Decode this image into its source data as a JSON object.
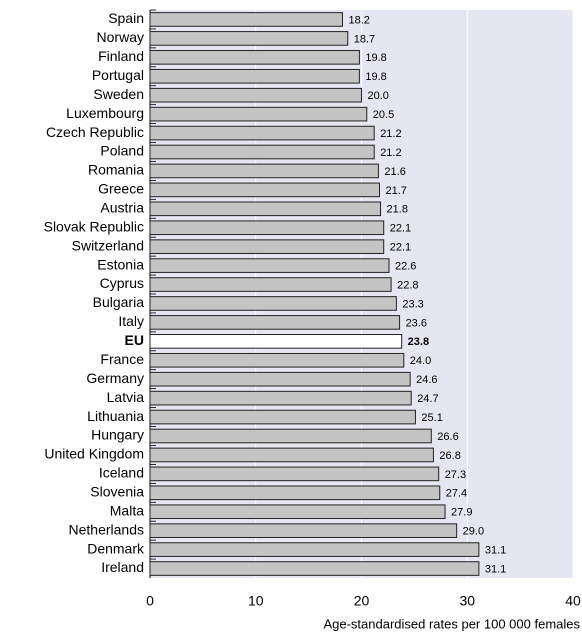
{
  "chart_data": {
    "type": "bar",
    "orientation": "horizontal",
    "x_label": "Age-standardised rates per 100 000 females",
    "categories": [
      "Spain",
      "Norway",
      "Finland",
      "Portugal",
      "Sweden",
      "Luxembourg",
      "Czech Republic",
      "Poland",
      "Romania",
      "Greece",
      "Austria",
      "Slovak Republic",
      "Switzerland",
      "Estonia",
      "Cyprus",
      "Bulgaria",
      "Italy",
      "EU",
      "France",
      "Germany",
      "Latvia",
      "Lithuania",
      "Hungary",
      "United Kingdom",
      "Iceland",
      "Slovenia",
      "Malta",
      "Netherlands",
      "Denmark",
      "Ireland"
    ],
    "values": [
      18.2,
      18.7,
      19.8,
      19.8,
      20.0,
      20.5,
      21.2,
      21.2,
      21.6,
      21.7,
      21.8,
      22.1,
      22.1,
      22.6,
      22.8,
      23.3,
      23.6,
      23.8,
      24.0,
      24.6,
      24.7,
      25.1,
      26.6,
      26.8,
      27.3,
      27.4,
      27.9,
      29.0,
      31.1,
      31.1
    ],
    "value_labels": [
      "18.2",
      "18.7",
      "19.8",
      "19.8",
      "20.0",
      "20.5",
      "21.2",
      "21.2",
      "21.6",
      "21.7",
      "21.8",
      "22.1",
      "22.1",
      "22.6",
      "22.8",
      "23.3",
      "23.6",
      "23.8",
      "24.0",
      "24.6",
      "24.7",
      "25.1",
      "26.6",
      "26.8",
      "27.3",
      "27.4",
      "27.9",
      "29.0",
      "31.1",
      "31.1"
    ],
    "color": "#c4c4c4",
    "highlight": "EU",
    "highlight_color": "#ffffff",
    "plot_background": "#e6e6f2",
    "grid_color": "#ffffff",
    "xlim": [
      0,
      40
    ],
    "xticks": [
      0,
      10,
      20,
      30,
      40
    ],
    "grid": true
  }
}
